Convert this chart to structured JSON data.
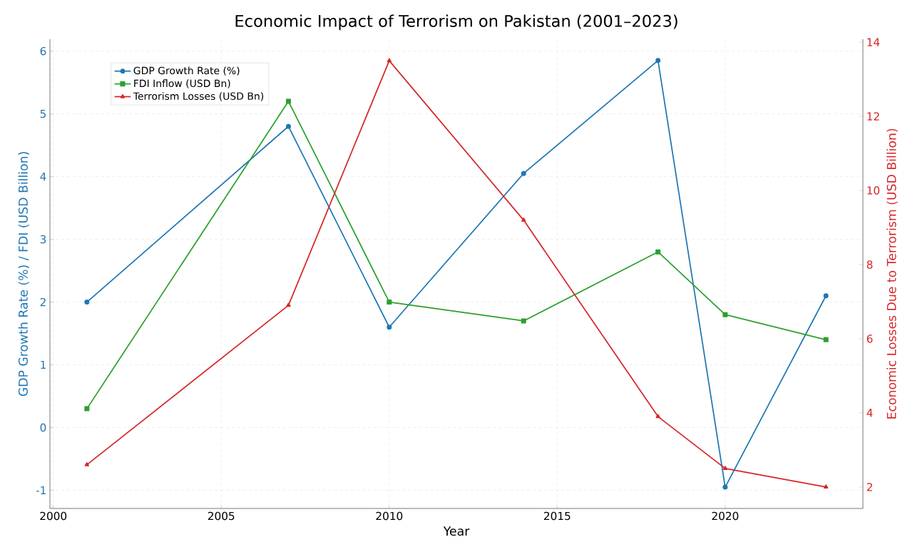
{
  "chart_data": {
    "type": "line",
    "title": "Economic Impact of Terrorism on Pakistan (2001–2023)",
    "xlabel": "Year",
    "ylabel": "GDP Growth Rate (%) / FDI (USD Billion)",
    "y2label": "Economic Losses Due to Terrorism (USD Billion)",
    "x": [
      2001,
      2007,
      2010,
      2014,
      2018,
      2020,
      2023
    ],
    "series": [
      {
        "name": "GDP Growth Rate (%)",
        "color": "#1f77b4",
        "marker": "circle",
        "values": [
          2.0,
          4.8,
          1.6,
          4.05,
          5.85,
          -0.95,
          2.1
        ]
      },
      {
        "name": "FDI Inflow (USD Bn)",
        "color": "#2ca02c",
        "marker": "square",
        "values": [
          0.3,
          5.2,
          2.0,
          1.7,
          2.8,
          1.8,
          1.4
        ]
      },
      {
        "name": "Terrorism Losses (USD Bn)",
        "color": "#d62728",
        "marker": "triangle",
        "axis": "y2",
        "values": [
          2.6,
          6.9,
          13.5,
          9.2,
          3.9,
          2.5,
          2.0
        ]
      }
    ],
    "xlim": [
      1999.9,
      2024.1
    ],
    "xticks": [
      2000,
      2005,
      2010,
      2015,
      2020
    ],
    "ylim": [
      -1.29,
      6.19
    ],
    "yticks": [
      -1,
      0,
      1,
      2,
      3,
      4,
      5,
      6
    ],
    "y2lim": [
      1.42,
      14.08
    ],
    "y2ticks": [
      2,
      4,
      6,
      8,
      10,
      12,
      14
    ],
    "grid": true,
    "legend": "top left",
    "line_style": "solid"
  }
}
